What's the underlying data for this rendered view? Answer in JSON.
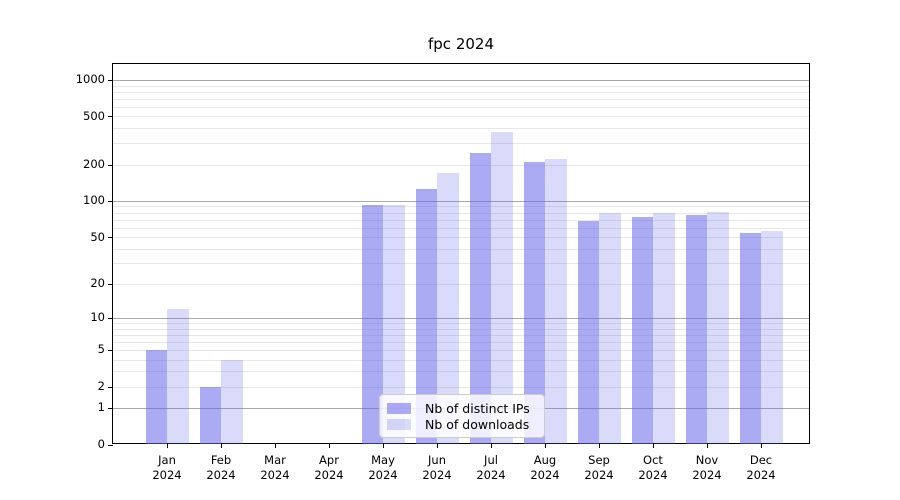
{
  "title": "fpc 2024",
  "colors": {
    "bar_ips": "rgba(102,102,235,0.55)",
    "bar_downloads": "rgba(102,102,235,0.24)",
    "grid_major": "#a9a9a9",
    "grid_minor": "#e7e7e7",
    "axis": "#000000"
  },
  "legend": {
    "items": [
      {
        "label": "Nb of distinct IPs",
        "series": "ips"
      },
      {
        "label": "Nb of downloads",
        "series": "downloads"
      }
    ]
  },
  "chart_data": {
    "type": "bar",
    "title": "fpc 2024",
    "categories": [
      "Jan 2024",
      "Feb 2024",
      "Mar 2024",
      "Apr 2024",
      "May 2024",
      "Jun 2024",
      "Jul 2024",
      "Aug 2024",
      "Sep 2024",
      "Oct 2024",
      "Nov 2024",
      "Dec 2024"
    ],
    "series": [
      {
        "name": "Nb of distinct IPs",
        "values": [
          5,
          2,
          0,
          0,
          93,
          126,
          250,
          212,
          68,
          73,
          76,
          54
        ]
      },
      {
        "name": "Nb of downloads",
        "values": [
          12,
          4,
          0,
          0,
          93,
          170,
          370,
          222,
          80,
          80,
          81,
          56
        ]
      }
    ],
    "xlabel": "",
    "ylabel": "",
    "yscale": "log(1+x)",
    "ylim": [
      0,
      1350
    ],
    "y_ticks": [
      1000,
      500,
      200,
      100,
      50,
      20,
      10,
      5,
      2,
      1,
      0
    ],
    "grid_major_values": [
      1,
      10,
      100,
      1000
    ],
    "grid_minor_values": [
      2,
      3,
      4,
      5,
      6,
      7,
      8,
      9,
      20,
      30,
      40,
      50,
      60,
      70,
      80,
      90,
      200,
      300,
      400,
      500,
      600,
      700,
      800,
      900
    ],
    "grid": true,
    "legend_position": "lower center"
  }
}
